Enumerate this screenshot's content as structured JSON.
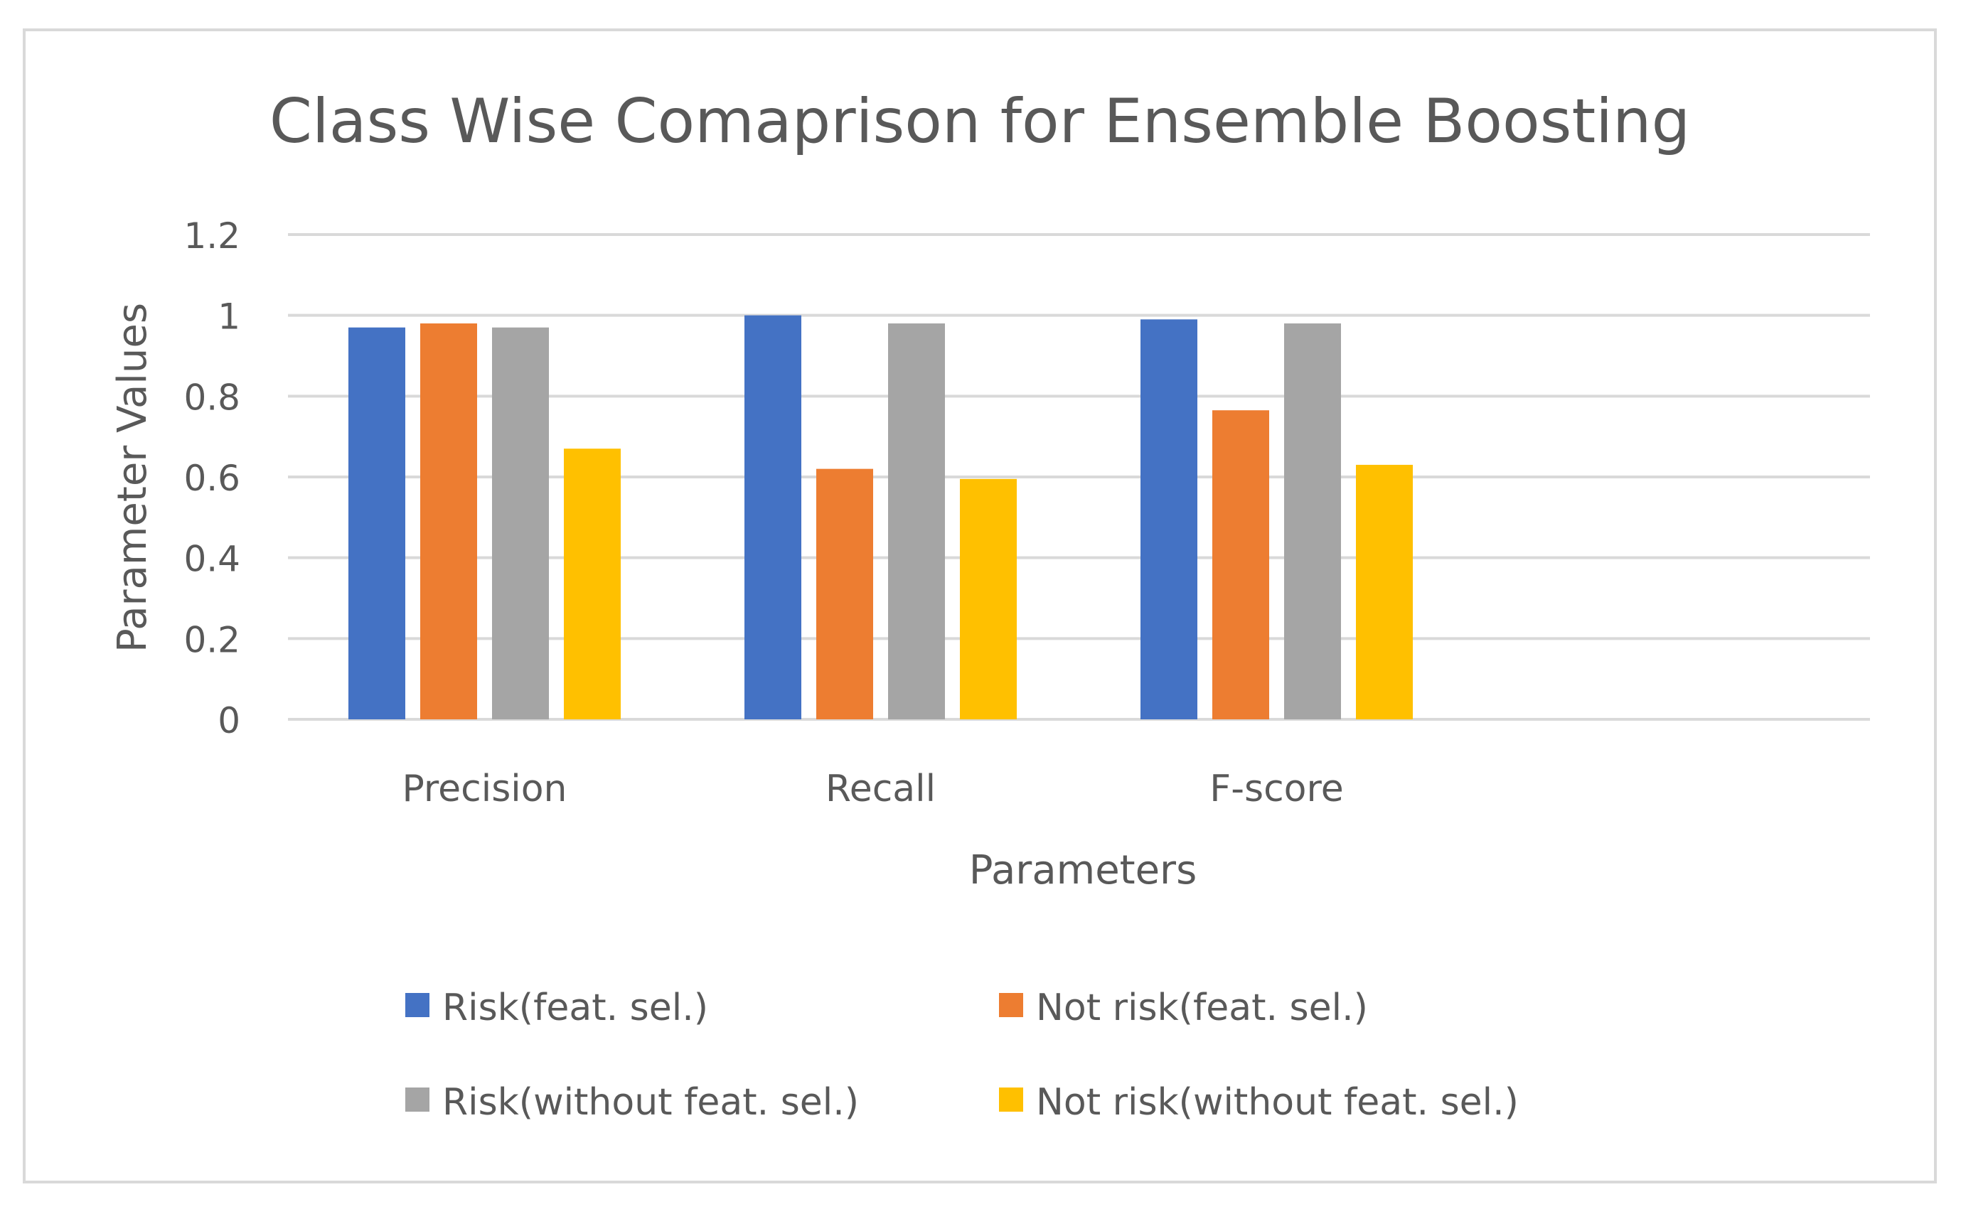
{
  "chart_data": {
    "type": "bar",
    "title": "Class Wise Comaprison for Ensemble Boosting",
    "xlabel": "Parameters",
    "ylabel": "Parameter Values",
    "categories": [
      "Precision",
      "Recall",
      "F-score"
    ],
    "ylim": [
      0,
      1.2
    ],
    "yticks": [
      0,
      0.2,
      0.4,
      0.6,
      0.8,
      1,
      1.2
    ],
    "grid": true,
    "legend_position": "bottom",
    "series": [
      {
        "name": "Risk(feat. sel.)",
        "color": "#4472C4",
        "values": [
          0.97,
          1.0,
          0.99
        ]
      },
      {
        "name": "Not risk(feat. sel.)",
        "color": "#ED7D31",
        "values": [
          0.98,
          0.62,
          0.765
        ]
      },
      {
        "name": "Risk(without feat. sel.)",
        "color": "#A5A5A5",
        "values": [
          0.97,
          0.98,
          0.98
        ]
      },
      {
        "name": "Not risk(without feat. sel.)",
        "color": "#FFC000",
        "values": [
          0.67,
          0.595,
          0.63
        ]
      }
    ]
  }
}
